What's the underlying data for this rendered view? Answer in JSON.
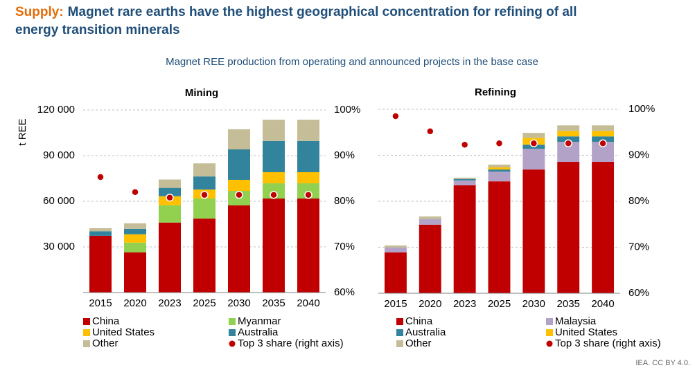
{
  "header": {
    "title_prefix": "Supply:",
    "title_line1": "Magnet rare earths have the highest geographical concentration for refining of all",
    "title_line2": "energy transition minerals",
    "subtitle": "Magnet REE production from operating and announced projects in the base case"
  },
  "footer": "IEA. CC BY 4.0.",
  "chart_data": [
    {
      "type": "stacked_bar",
      "title": "Mining",
      "y_label": "t REE",
      "categories": [
        "2015",
        "2020",
        "2023",
        "2025",
        "2030",
        "2035",
        "2040"
      ],
      "ylim": [
        0,
        120000
      ],
      "yticks": [
        {
          "value": 30000,
          "label": "30 000"
        },
        {
          "value": 60000,
          "label": "60 000"
        },
        {
          "value": 90000,
          "label": "90 000"
        },
        {
          "value": 120000,
          "label": "120 000"
        }
      ],
      "y2lim": [
        60,
        100
      ],
      "y2ticks": [
        {
          "value": 60,
          "label": "60%"
        },
        {
          "value": 70,
          "label": "70%"
        },
        {
          "value": 80,
          "label": "80%"
        },
        {
          "value": 90,
          "label": "90%"
        },
        {
          "value": 100,
          "label": "100%"
        }
      ],
      "grid": true,
      "series": [
        {
          "name": "China",
          "color": "#c00000",
          "values": [
            37300,
            26400,
            46000,
            48600,
            57300,
            61800,
            61800
          ]
        },
        {
          "name": "Myanmar",
          "color": "#92d050",
          "values": [
            0,
            6400,
            11400,
            13200,
            9500,
            10000,
            10000
          ]
        },
        {
          "name": "United States",
          "color": "#ffc000",
          "values": [
            0,
            5500,
            5900,
            5900,
            7300,
            7300,
            7300
          ]
        },
        {
          "name": "Australia",
          "color": "#31849b",
          "values": [
            3000,
            3600,
            5500,
            8600,
            20000,
            20500,
            20500
          ]
        },
        {
          "name": "Other",
          "color": "#c4bd97",
          "values": [
            2000,
            3600,
            5500,
            8600,
            13200,
            14000,
            14000
          ]
        },
        {
          "name": "Top 3 share (right axis)",
          "color": "#c00000",
          "axis": "y2",
          "values": [
            85.3,
            82,
            80.8,
            81.4,
            81.4,
            81.4,
            81.4
          ]
        }
      ]
    },
    {
      "type": "stacked_bar",
      "title": "Refining",
      "categories": [
        "2015",
        "2020",
        "2023",
        "2025",
        "2030",
        "2035",
        "2040"
      ],
      "ylim": [
        0,
        120000
      ],
      "y2lim": [
        60,
        100
      ],
      "y2ticks": [
        {
          "value": 60,
          "label": "60%"
        },
        {
          "value": 70,
          "label": "70%"
        },
        {
          "value": 80,
          "label": "80%"
        },
        {
          "value": 90,
          "label": "90%"
        },
        {
          "value": 100,
          "label": "100%"
        }
      ],
      "grid": true,
      "series": [
        {
          "name": "China",
          "color": "#c00000",
          "values": [
            26600,
            44700,
            70400,
            73000,
            80700,
            85700,
            85700
          ]
        },
        {
          "name": "Malaysia",
          "color": "#b3a2c7",
          "values": [
            3200,
            3600,
            3200,
            6300,
            13500,
            13000,
            13000
          ]
        },
        {
          "name": "Australia",
          "color": "#31849b",
          "values": [
            0,
            0,
            900,
            1400,
            2700,
            3600,
            3600
          ]
        },
        {
          "name": "United States",
          "color": "#ffc000",
          "values": [
            0,
            0,
            0,
            1400,
            4500,
            3600,
            3600
          ]
        },
        {
          "name": "Other",
          "color": "#c4bd97",
          "values": [
            1400,
            1800,
            900,
            1800,
            3200,
            3600,
            3600
          ]
        },
        {
          "name": "Top 3 share (right axis)",
          "color": "#c00000",
          "axis": "y2",
          "values": [
            98.5,
            95.2,
            92.3,
            92.6,
            92.6,
            92.6,
            92.6
          ]
        }
      ]
    }
  ]
}
